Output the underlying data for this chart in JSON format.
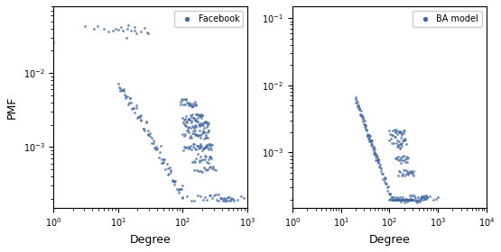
{
  "left_label": "Facebook",
  "right_label": "BA model",
  "ylabel": "PMF",
  "xlabel": "Degree",
  "dot_color": "#4169a0",
  "dot_size": 4,
  "dot_alpha": 0.75,
  "left_xlim": [
    1,
    1000
  ],
  "left_ylim": [
    0.00015,
    0.08
  ],
  "right_xlim": [
    1,
    10000
  ],
  "right_ylim": [
    0.00015,
    0.15
  ],
  "figsize": [
    5.55,
    2.8
  ],
  "dpi": 100
}
